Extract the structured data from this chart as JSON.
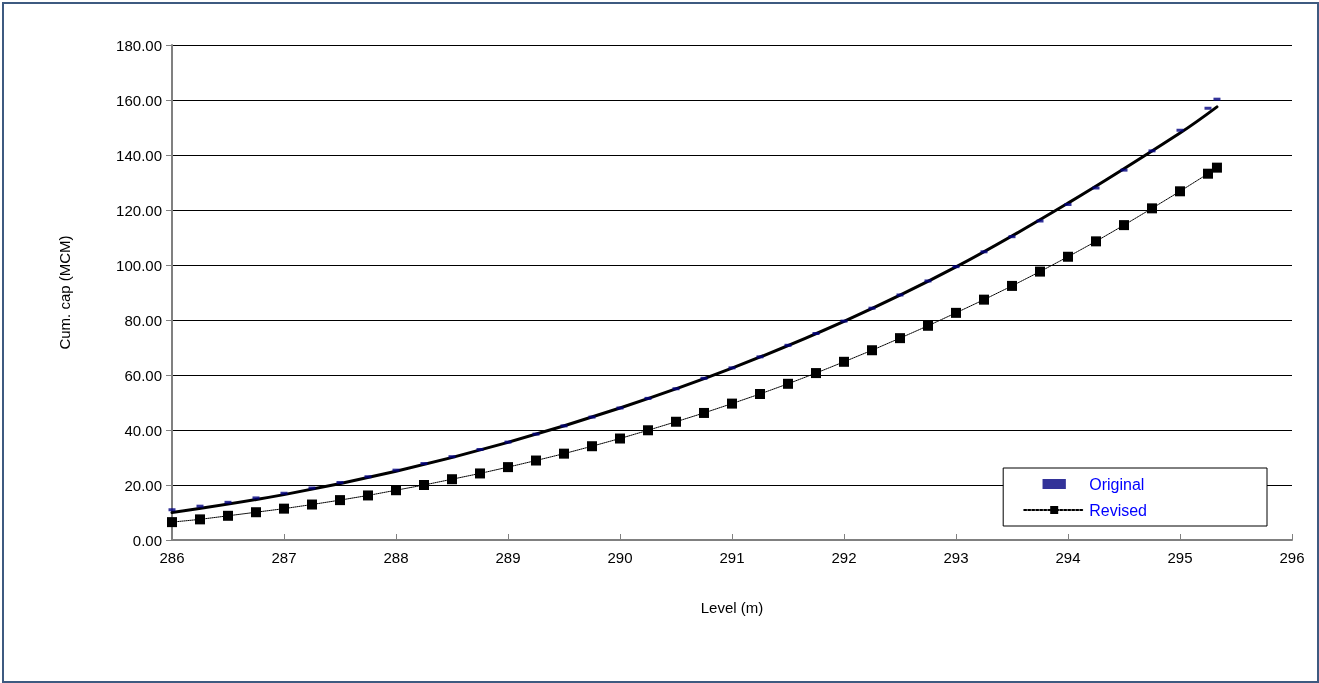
{
  "chart_data": {
    "type": "scatter",
    "xlabel": "Level (m)",
    "ylabel": "Cum. cap (MCM)",
    "xlim": [
      286,
      296
    ],
    "xticks": [
      286,
      287,
      288,
      289,
      290,
      291,
      292,
      293,
      294,
      295,
      296
    ],
    "ylim": [
      0,
      180
    ],
    "yticks": [
      {
        "value": 0,
        "label": "0.00"
      },
      {
        "value": 20,
        "label": "20.00"
      },
      {
        "value": 40,
        "label": "40.00"
      },
      {
        "value": 60,
        "label": "60.00"
      },
      {
        "value": 80,
        "label": "80.00"
      },
      {
        "value": 100,
        "label": "100.00"
      },
      {
        "value": 120,
        "label": "120.00"
      },
      {
        "value": 140,
        "label": "140.00"
      },
      {
        "value": 160,
        "label": "160.00"
      },
      {
        "value": 180,
        "label": "180.00"
      }
    ],
    "grid": "y",
    "legend": "bottom right",
    "series": [
      {
        "name": "Original",
        "color": "#000080",
        "x": [
          286,
          286.25,
          286.5,
          286.75,
          287,
          287.25,
          287.5,
          287.75,
          288,
          288.25,
          288.5,
          288.75,
          289,
          289.25,
          289.5,
          289.75,
          290,
          290.25,
          290.5,
          290.75,
          291,
          291.25,
          291.5,
          291.75,
          292,
          292.25,
          292.5,
          292.75,
          293,
          293.25,
          293.5,
          293.75,
          294,
          294.25,
          294.5,
          294.75,
          295,
          295.25,
          295.33
        ],
        "values": [
          11.0,
          12.3,
          13.7,
          15.3,
          17.0,
          18.9,
          20.9,
          23.0,
          25.4,
          27.8,
          30.3,
          32.9,
          35.6,
          38.5,
          41.5,
          44.7,
          48.0,
          51.5,
          55.0,
          58.8,
          62.6,
          66.6,
          70.8,
          75.1,
          79.6,
          84.3,
          89.1,
          94.2,
          99.4,
          104.8,
          110.3,
          116.0,
          122.0,
          128.0,
          134.5,
          141.5,
          149.0,
          157.0,
          160.3
        ]
      },
      {
        "type": "line",
        "color": "#000000",
        "marker": "none",
        "line_style": "solid",
        "x": [
          286,
          287,
          288,
          289,
          290,
          291,
          292,
          293,
          294,
          295,
          295.33
        ],
        "values": [
          10,
          16.5,
          25,
          35.5,
          48,
          62.5,
          79.5,
          99.3,
          122.5,
          148,
          157.5
        ]
      },
      {
        "name": "Revised",
        "type": "line",
        "color": "#000000",
        "marker": "square",
        "line_style": "dotted",
        "x": [
          286,
          286.25,
          286.5,
          286.75,
          287,
          287.25,
          287.5,
          287.75,
          288,
          288.25,
          288.5,
          288.75,
          289,
          289.25,
          289.5,
          289.75,
          290,
          290.25,
          290.5,
          290.75,
          291,
          291.25,
          291.5,
          291.75,
          292,
          292.25,
          292.5,
          292.75,
          293,
          293.25,
          293.5,
          293.75,
          294,
          294.25,
          294.5,
          294.75,
          295,
          295.25,
          295.33
        ],
        "values": [
          6.5,
          7.5,
          8.8,
          10.1,
          11.4,
          12.9,
          14.5,
          16.2,
          18.1,
          20.0,
          22.1,
          24.2,
          26.5,
          28.9,
          31.4,
          34.1,
          36.9,
          39.9,
          43.0,
          46.2,
          49.6,
          53.1,
          56.8,
          60.7,
          64.8,
          69.0,
          73.4,
          77.9,
          82.6,
          87.4,
          92.4,
          97.6,
          103.0,
          108.6,
          114.5,
          120.6,
          126.8,
          133.2,
          135.4
        ]
      }
    ]
  }
}
